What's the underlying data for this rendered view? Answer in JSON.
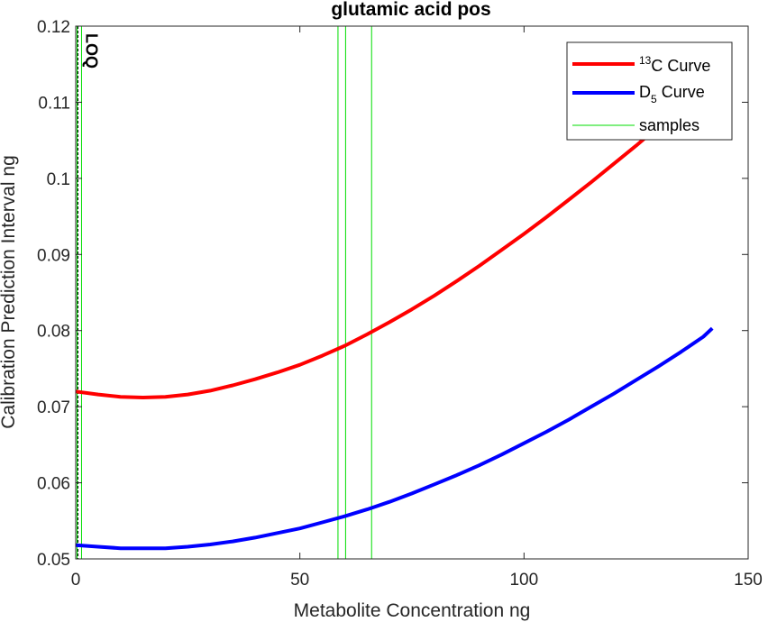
{
  "chart_data": {
    "type": "line",
    "title": "glutamic acid pos",
    "xlabel": "Metabolite Concentration ng",
    "ylabel": "Calibration Prediction Interval ng",
    "xlim": [
      0,
      150
    ],
    "ylim": [
      0.05,
      0.12
    ],
    "x_ticks": [
      0,
      50,
      100,
      150
    ],
    "x_tick_labels": [
      "0",
      "50",
      "100",
      "150"
    ],
    "y_ticks": [
      0.05,
      0.06,
      0.07,
      0.08,
      0.09,
      0.1,
      0.11,
      0.12
    ],
    "y_tick_labels": [
      "0.05",
      "0.06",
      "0.07",
      "0.08",
      "0.09",
      "0.1",
      "0.11",
      "0.12"
    ],
    "grid": false,
    "legend_position": "top-right",
    "series": [
      {
        "name_sup": "13",
        "name_main": "C Curve",
        "color": "#ff0000",
        "x": [
          0,
          5,
          10,
          15,
          20,
          25,
          30,
          35,
          40,
          45,
          50,
          55,
          60,
          65,
          70,
          75,
          80,
          85,
          90,
          95,
          100,
          105,
          110,
          115,
          120,
          125,
          130,
          133
        ],
        "y": [
          0.072,
          0.0716,
          0.0713,
          0.0712,
          0.0713,
          0.0716,
          0.0721,
          0.0728,
          0.0736,
          0.0745,
          0.0755,
          0.0767,
          0.078,
          0.0795,
          0.0811,
          0.0828,
          0.0846,
          0.0865,
          0.0885,
          0.0906,
          0.0927,
          0.0949,
          0.0972,
          0.0995,
          0.1019,
          0.1043,
          0.1068,
          0.1083
        ]
      },
      {
        "name_main": "D",
        "name_sub": "5",
        "name_tail": " Curve",
        "color": "#0000ff",
        "x": [
          0,
          5,
          10,
          15,
          20,
          25,
          30,
          35,
          40,
          45,
          50,
          55,
          60,
          65,
          70,
          75,
          80,
          85,
          90,
          95,
          100,
          105,
          110,
          115,
          120,
          125,
          130,
          135,
          140,
          142
        ],
        "y": [
          0.0518,
          0.0516,
          0.0514,
          0.0514,
          0.0514,
          0.0516,
          0.0519,
          0.0523,
          0.0528,
          0.0534,
          0.054,
          0.0548,
          0.0556,
          0.0565,
          0.0575,
          0.0586,
          0.0598,
          0.061,
          0.0623,
          0.0637,
          0.0652,
          0.0667,
          0.0683,
          0.07,
          0.0717,
          0.0735,
          0.0753,
          0.0772,
          0.0792,
          0.0803
        ]
      }
    ],
    "samples": {
      "name": "samples",
      "color": "#00dd00",
      "x": [
        0.3,
        1.3,
        58.5,
        60.2,
        66.0
      ]
    },
    "loq": {
      "label": "LOQ",
      "x": 0.5,
      "color": "#000000"
    }
  }
}
